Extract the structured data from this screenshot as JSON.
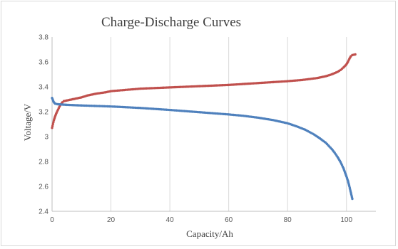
{
  "chart_data": {
    "type": "scatter",
    "title": "Charge-Discharge  Curves",
    "xlabel": "Capacity/Ah",
    "ylabel": "Voltage/V",
    "xlim": [
      0,
      110
    ],
    "ylim": [
      2.4,
      3.8
    ],
    "x_ticks": [
      "0",
      "20",
      "40",
      "60",
      "80",
      "100"
    ],
    "y_ticks": [
      "2.4",
      "2.6",
      "2.8",
      "3",
      "3.2",
      "3.4",
      "3.6",
      "3.8"
    ],
    "x_tick_values": [
      0,
      20,
      40,
      60,
      80,
      100
    ],
    "y_tick_values": [
      2.4,
      2.6,
      2.8,
      3.0,
      3.2,
      3.4,
      3.6,
      3.8
    ],
    "grid": {
      "vertical": true,
      "horizontal": false
    },
    "series": [
      {
        "color": "#c0504d",
        "x": [
          0,
          0.3,
          0.6,
          1,
          1.5,
          2,
          2.5,
          3,
          3.5,
          4,
          5,
          6,
          8,
          10,
          12,
          15,
          18,
          20,
          25,
          30,
          40,
          50,
          60,
          70,
          80,
          85,
          90,
          93,
          95,
          97,
          98,
          99,
          100,
          100.5,
          101,
          101.5,
          102,
          103
        ],
        "y": [
          3.07,
          3.1,
          3.13,
          3.16,
          3.19,
          3.215,
          3.24,
          3.26,
          3.275,
          3.285,
          3.29,
          3.295,
          3.305,
          3.315,
          3.33,
          3.345,
          3.355,
          3.365,
          3.375,
          3.385,
          3.395,
          3.405,
          3.415,
          3.43,
          3.445,
          3.455,
          3.47,
          3.485,
          3.5,
          3.52,
          3.535,
          3.555,
          3.58,
          3.6,
          3.625,
          3.645,
          3.655,
          3.66
        ]
      },
      {
        "color": "#4f81bd",
        "x": [
          0,
          0.5,
          1,
          1.5,
          2,
          3,
          5,
          8,
          10,
          15,
          20,
          25,
          30,
          35,
          40,
          45,
          50,
          55,
          60,
          65,
          70,
          75,
          80,
          83,
          86,
          89,
          91,
          93,
          95,
          96,
          97,
          98,
          99,
          100,
          100.5,
          101,
          101.5,
          102
        ],
        "y": [
          3.31,
          3.28,
          3.265,
          3.262,
          3.26,
          3.258,
          3.255,
          3.252,
          3.25,
          3.246,
          3.242,
          3.236,
          3.23,
          3.222,
          3.214,
          3.205,
          3.196,
          3.187,
          3.178,
          3.167,
          3.152,
          3.133,
          3.107,
          3.083,
          3.055,
          3.017,
          2.985,
          2.95,
          2.9,
          2.87,
          2.835,
          2.795,
          2.745,
          2.68,
          2.645,
          2.6,
          2.55,
          2.5
        ]
      }
    ]
  }
}
